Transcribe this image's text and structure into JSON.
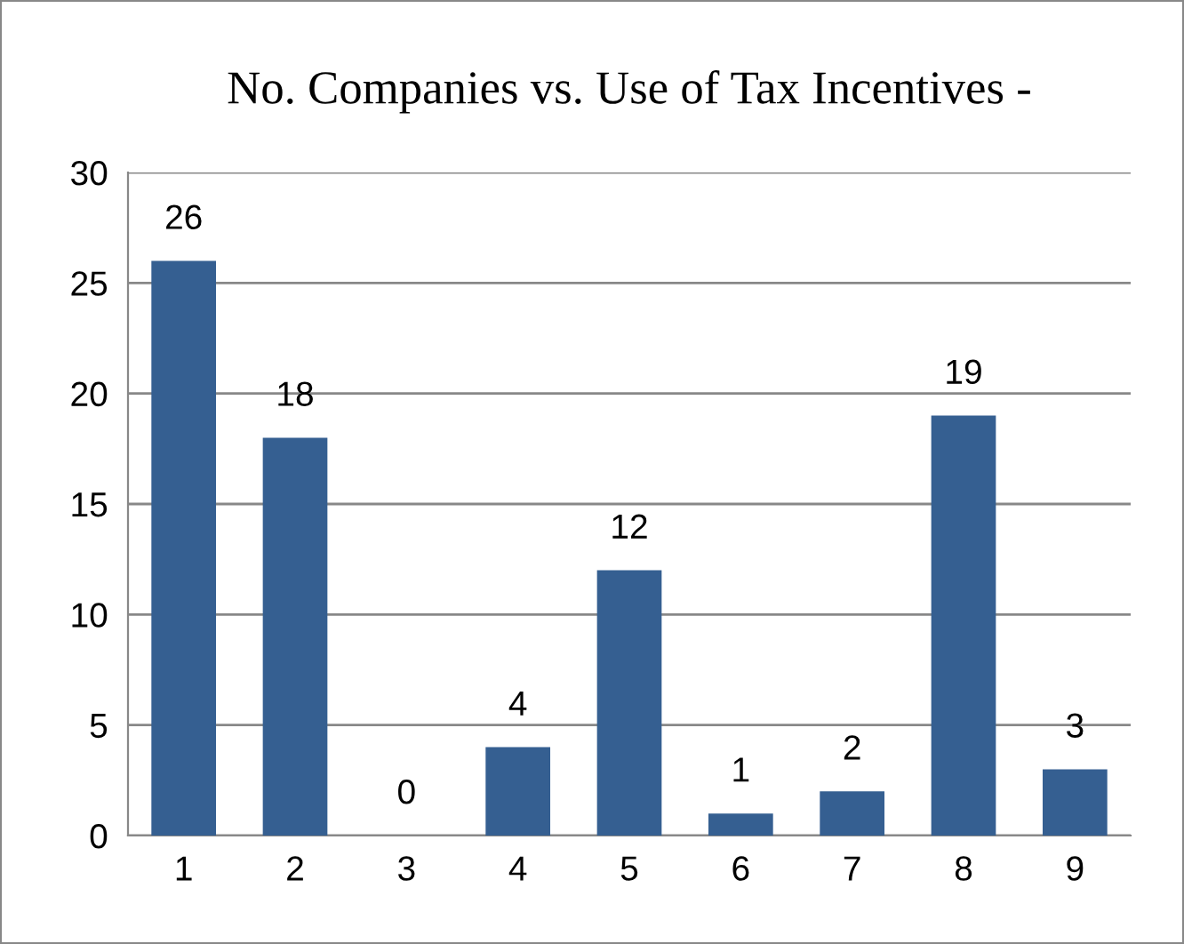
{
  "chart_data": {
    "type": "bar",
    "title": "No. Companies vs. Use of Tax Incentives -",
    "categories": [
      "1",
      "2",
      "3",
      "4",
      "5",
      "6",
      "7",
      "8",
      "9"
    ],
    "values": [
      26,
      18,
      0,
      4,
      12,
      1,
      2,
      19,
      3
    ],
    "color": "#355f91",
    "ylim": [
      0,
      30
    ],
    "yticks": [
      0,
      5,
      10,
      15,
      20,
      25,
      30
    ],
    "grid": "y",
    "data_labels": true
  }
}
